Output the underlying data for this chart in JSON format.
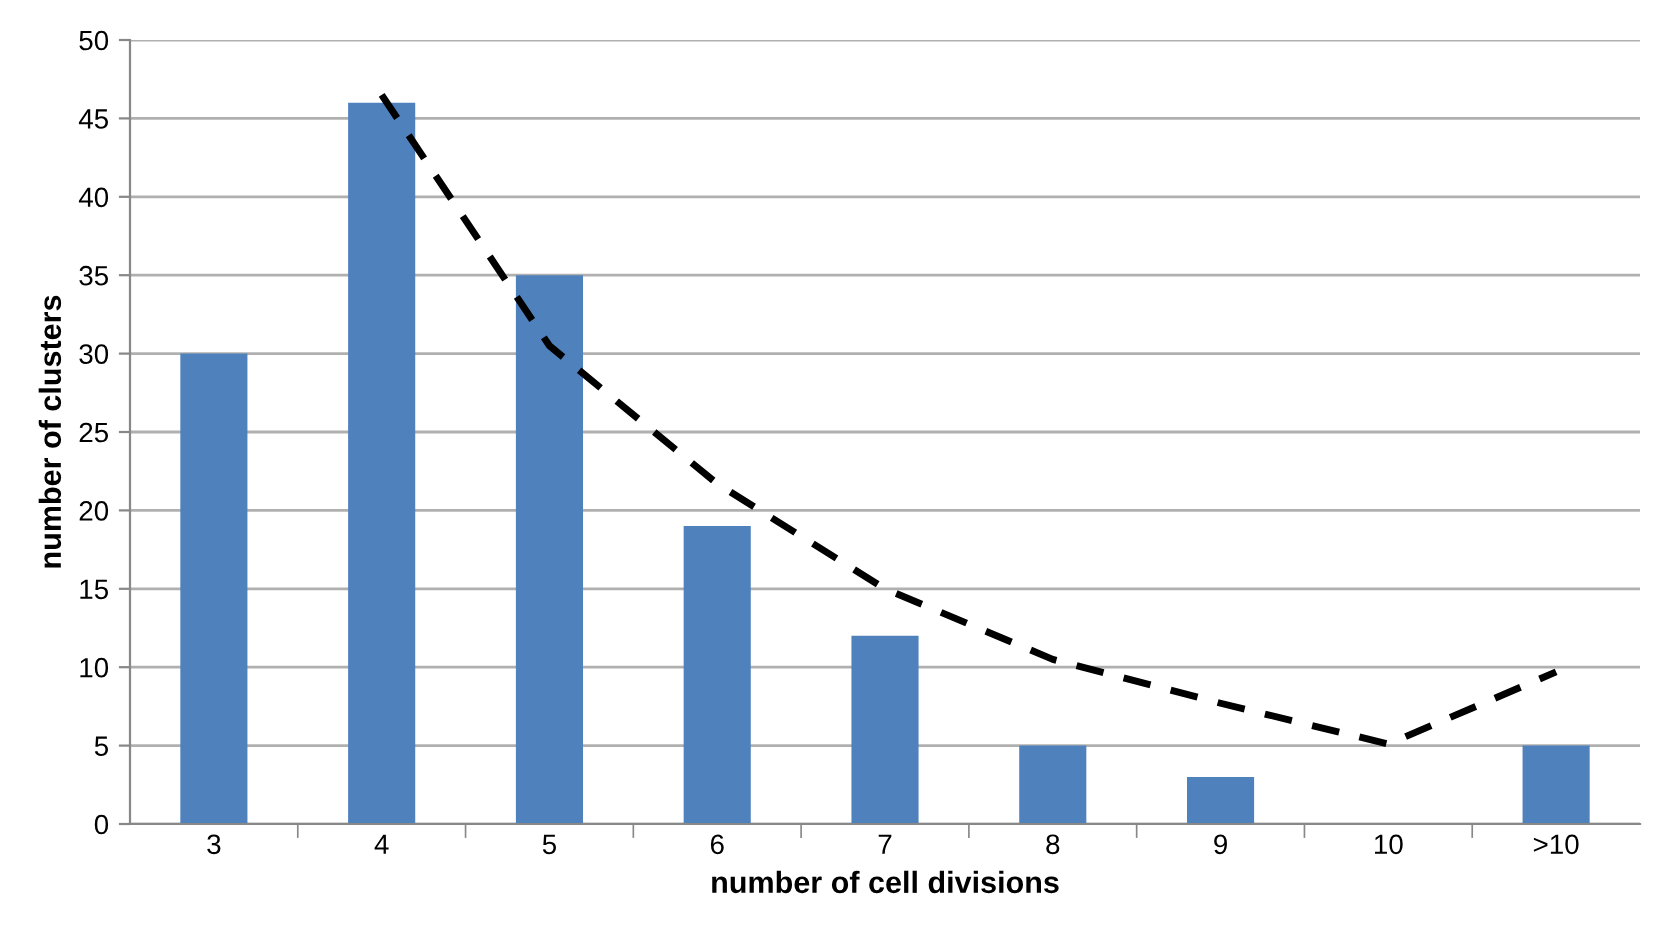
{
  "chart_data": {
    "type": "bar",
    "xlabel": "number of cell divisions",
    "ylabel": "number of clusters",
    "categories": [
      "3",
      "4",
      "5",
      "6",
      "7",
      "8",
      "9",
      "10",
      ">10"
    ],
    "series": [
      {
        "color": "#4f81bd",
        "values": [
          30,
          46,
          35,
          19,
          12,
          5,
          3,
          0,
          5
        ]
      },
      {
        "type": "line",
        "color": "#000000",
        "line_style": "dashed",
        "values": [
          null,
          46.5,
          30.5,
          21.7,
          15,
          10.5,
          7.7,
          5.1,
          9.7
        ]
      }
    ],
    "ylim": [
      0,
      50
    ],
    "yticks": [
      0,
      5,
      10,
      15,
      20,
      25,
      30,
      35,
      40,
      45,
      50
    ],
    "grid": "y"
  }
}
